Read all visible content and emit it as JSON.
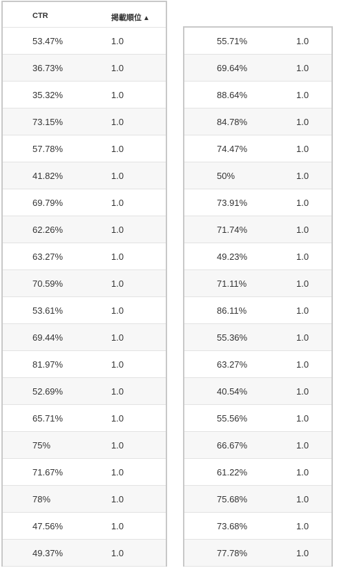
{
  "table": {
    "headers": {
      "ctr": "CTR",
      "rank": "掲載順位",
      "sort_arrow": "▲"
    },
    "left_rows": [
      {
        "ctr": "53.47%",
        "rank": "1.0"
      },
      {
        "ctr": "36.73%",
        "rank": "1.0"
      },
      {
        "ctr": "35.32%",
        "rank": "1.0"
      },
      {
        "ctr": "73.15%",
        "rank": "1.0"
      },
      {
        "ctr": "57.78%",
        "rank": "1.0"
      },
      {
        "ctr": "41.82%",
        "rank": "1.0"
      },
      {
        "ctr": "69.79%",
        "rank": "1.0"
      },
      {
        "ctr": "62.26%",
        "rank": "1.0"
      },
      {
        "ctr": "63.27%",
        "rank": "1.0"
      },
      {
        "ctr": "70.59%",
        "rank": "1.0"
      },
      {
        "ctr": "53.61%",
        "rank": "1.0"
      },
      {
        "ctr": "69.44%",
        "rank": "1.0"
      },
      {
        "ctr": "81.97%",
        "rank": "1.0"
      },
      {
        "ctr": "52.69%",
        "rank": "1.0"
      },
      {
        "ctr": "65.71%",
        "rank": "1.0"
      },
      {
        "ctr": "75%",
        "rank": "1.0"
      },
      {
        "ctr": "71.67%",
        "rank": "1.0"
      },
      {
        "ctr": "78%",
        "rank": "1.0"
      },
      {
        "ctr": "47.56%",
        "rank": "1.0"
      },
      {
        "ctr": "49.37%",
        "rank": "1.0"
      }
    ],
    "right_rows": [
      {
        "ctr": "55.71%",
        "rank": "1.0"
      },
      {
        "ctr": "69.64%",
        "rank": "1.0"
      },
      {
        "ctr": "88.64%",
        "rank": "1.0"
      },
      {
        "ctr": "84.78%",
        "rank": "1.0"
      },
      {
        "ctr": "74.47%",
        "rank": "1.0"
      },
      {
        "ctr": "50%",
        "rank": "1.0"
      },
      {
        "ctr": "73.91%",
        "rank": "1.0"
      },
      {
        "ctr": "71.74%",
        "rank": "1.0"
      },
      {
        "ctr": "49.23%",
        "rank": "1.0"
      },
      {
        "ctr": "71.11%",
        "rank": "1.0"
      },
      {
        "ctr": "86.11%",
        "rank": "1.0"
      },
      {
        "ctr": "55.36%",
        "rank": "1.0"
      },
      {
        "ctr": "63.27%",
        "rank": "1.0"
      },
      {
        "ctr": "40.54%",
        "rank": "1.0"
      },
      {
        "ctr": "55.56%",
        "rank": "1.0"
      },
      {
        "ctr": "66.67%",
        "rank": "1.0"
      },
      {
        "ctr": "61.22%",
        "rank": "1.0"
      },
      {
        "ctr": "75.68%",
        "rank": "1.0"
      },
      {
        "ctr": "73.68%",
        "rank": "1.0"
      },
      {
        "ctr": "77.78%",
        "rank": "1.0"
      }
    ]
  }
}
